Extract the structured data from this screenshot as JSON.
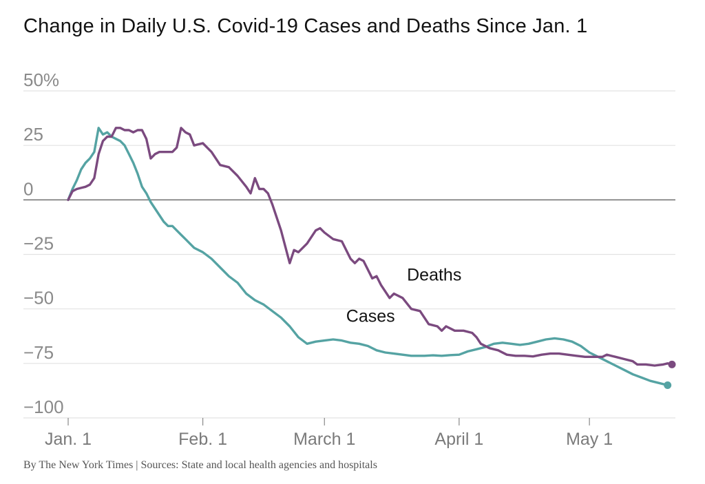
{
  "colors": {
    "deaths": "#7b4a7f",
    "cases": "#55a3a3",
    "grid": "#e2e2e2",
    "zero": "#777777",
    "axis": "#bdbdbd"
  },
  "chart_data": {
    "type": "line",
    "title": "Change in Daily U.S. Covid-19 Cases and Deaths Since Jan. 1",
    "source": "By The New York Times | Sources: State and local health agencies and hospitals",
    "xlabel": "",
    "ylabel": "",
    "x_domain": [
      "2021-01-01",
      "2021-05-20"
    ],
    "ylim": [
      -100,
      50
    ],
    "y_ticks": [
      {
        "value": 50,
        "label": "50%"
      },
      {
        "value": 25,
        "label": "25"
      },
      {
        "value": 0,
        "label": "0"
      },
      {
        "value": -25,
        "label": "−25"
      },
      {
        "value": -50,
        "label": "−50"
      },
      {
        "value": -75,
        "label": "−75"
      },
      {
        "value": -100,
        "label": "−100"
      }
    ],
    "x_ticks": [
      {
        "date": "2021-01-01",
        "label": "Jan. 1"
      },
      {
        "date": "2021-02-01",
        "label": "Feb. 1"
      },
      {
        "date": "2021-03-01",
        "label": "March 1"
      },
      {
        "date": "2021-04-01",
        "label": "April 1"
      },
      {
        "date": "2021-05-01",
        "label": "May 1"
      }
    ],
    "grid": true,
    "series": [
      {
        "name": "Cases",
        "label_date": "2021-03-06",
        "label_value": -56,
        "points": [
          [
            "2021-01-01",
            0
          ],
          [
            "2021-01-02",
            5
          ],
          [
            "2021-01-03",
            9
          ],
          [
            "2021-01-04",
            14
          ],
          [
            "2021-01-05",
            17
          ],
          [
            "2021-01-06",
            19
          ],
          [
            "2021-01-07",
            22
          ],
          [
            "2021-01-08",
            33
          ],
          [
            "2021-01-09",
            30
          ],
          [
            "2021-01-10",
            31
          ],
          [
            "2021-01-11",
            29
          ],
          [
            "2021-01-12",
            28
          ],
          [
            "2021-01-13",
            27
          ],
          [
            "2021-01-14",
            25
          ],
          [
            "2021-01-15",
            21
          ],
          [
            "2021-01-16",
            17
          ],
          [
            "2021-01-17",
            12
          ],
          [
            "2021-01-18",
            6
          ],
          [
            "2021-01-19",
            3
          ],
          [
            "2021-01-20",
            -1
          ],
          [
            "2021-01-21",
            -4
          ],
          [
            "2021-01-22",
            -7
          ],
          [
            "2021-01-23",
            -10
          ],
          [
            "2021-01-24",
            -12
          ],
          [
            "2021-01-25",
            -12
          ],
          [
            "2021-01-26",
            -14
          ],
          [
            "2021-01-27",
            -16
          ],
          [
            "2021-01-28",
            -18
          ],
          [
            "2021-01-29",
            -20
          ],
          [
            "2021-01-30",
            -22
          ],
          [
            "2021-02-01",
            -24
          ],
          [
            "2021-02-03",
            -27
          ],
          [
            "2021-02-05",
            -31
          ],
          [
            "2021-02-07",
            -35
          ],
          [
            "2021-02-09",
            -38
          ],
          [
            "2021-02-11",
            -43
          ],
          [
            "2021-02-13",
            -46
          ],
          [
            "2021-02-15",
            -48
          ],
          [
            "2021-02-17",
            -51
          ],
          [
            "2021-02-19",
            -54
          ],
          [
            "2021-02-21",
            -58
          ],
          [
            "2021-02-23",
            -63
          ],
          [
            "2021-02-25",
            -66
          ],
          [
            "2021-02-27",
            -65
          ],
          [
            "2021-03-01",
            -64.5
          ],
          [
            "2021-03-03",
            -64
          ],
          [
            "2021-03-05",
            -64.5
          ],
          [
            "2021-03-07",
            -65.5
          ],
          [
            "2021-03-09",
            -66
          ],
          [
            "2021-03-11",
            -67
          ],
          [
            "2021-03-13",
            -69
          ],
          [
            "2021-03-15",
            -70
          ],
          [
            "2021-03-17",
            -70.5
          ],
          [
            "2021-03-19",
            -71
          ],
          [
            "2021-03-21",
            -71.5
          ],
          [
            "2021-03-24",
            -71.5
          ],
          [
            "2021-03-26",
            -71.3
          ],
          [
            "2021-03-28",
            -71.5
          ],
          [
            "2021-03-30",
            -71.2
          ],
          [
            "2021-04-01",
            -71
          ],
          [
            "2021-04-03",
            -69.5
          ],
          [
            "2021-04-05",
            -68.5
          ],
          [
            "2021-04-07",
            -67.5
          ],
          [
            "2021-04-09",
            -66
          ],
          [
            "2021-04-11",
            -65.5
          ],
          [
            "2021-04-13",
            -66
          ],
          [
            "2021-04-15",
            -66.5
          ],
          [
            "2021-04-17",
            -66
          ],
          [
            "2021-04-19",
            -65
          ],
          [
            "2021-04-21",
            -64
          ],
          [
            "2021-04-23",
            -63.5
          ],
          [
            "2021-04-25",
            -64
          ],
          [
            "2021-04-27",
            -65
          ],
          [
            "2021-04-29",
            -67
          ],
          [
            "2021-05-01",
            -70
          ],
          [
            "2021-05-03",
            -72
          ],
          [
            "2021-05-05",
            -74
          ],
          [
            "2021-05-07",
            -76
          ],
          [
            "2021-05-09",
            -78
          ],
          [
            "2021-05-11",
            -80
          ],
          [
            "2021-05-13",
            -81.5
          ],
          [
            "2021-05-15",
            -83
          ],
          [
            "2021-05-17",
            -84
          ],
          [
            "2021-05-19",
            -85
          ]
        ]
      },
      {
        "name": "Deaths",
        "label_date": "2021-03-20",
        "label_value": -37,
        "points": [
          [
            "2021-01-01",
            0
          ],
          [
            "2021-01-02",
            4
          ],
          [
            "2021-01-03",
            5
          ],
          [
            "2021-01-04",
            5.5
          ],
          [
            "2021-01-05",
            6
          ],
          [
            "2021-01-06",
            7
          ],
          [
            "2021-01-07",
            10
          ],
          [
            "2021-01-08",
            21
          ],
          [
            "2021-01-09",
            27
          ],
          [
            "2021-01-10",
            29
          ],
          [
            "2021-01-11",
            29
          ],
          [
            "2021-01-12",
            33
          ],
          [
            "2021-01-13",
            33
          ],
          [
            "2021-01-14",
            32
          ],
          [
            "2021-01-15",
            32
          ],
          [
            "2021-01-16",
            31
          ],
          [
            "2021-01-17",
            32
          ],
          [
            "2021-01-18",
            32
          ],
          [
            "2021-01-19",
            28
          ],
          [
            "2021-01-20",
            19
          ],
          [
            "2021-01-21",
            21
          ],
          [
            "2021-01-22",
            22
          ],
          [
            "2021-01-23",
            22
          ],
          [
            "2021-01-24",
            22
          ],
          [
            "2021-01-25",
            22
          ],
          [
            "2021-01-26",
            24
          ],
          [
            "2021-01-27",
            33
          ],
          [
            "2021-01-28",
            31
          ],
          [
            "2021-01-29",
            30
          ],
          [
            "2021-01-30",
            25
          ],
          [
            "2021-02-01",
            26
          ],
          [
            "2021-02-03",
            22
          ],
          [
            "2021-02-05",
            16
          ],
          [
            "2021-02-07",
            15
          ],
          [
            "2021-02-09",
            11
          ],
          [
            "2021-02-11",
            6
          ],
          [
            "2021-02-12",
            3
          ],
          [
            "2021-02-13",
            10
          ],
          [
            "2021-02-14",
            5
          ],
          [
            "2021-02-15",
            5
          ],
          [
            "2021-02-16",
            3
          ],
          [
            "2021-02-17",
            -2
          ],
          [
            "2021-02-19",
            -14
          ],
          [
            "2021-02-21",
            -29
          ],
          [
            "2021-02-22",
            -23
          ],
          [
            "2021-02-23",
            -24
          ],
          [
            "2021-02-25",
            -20
          ],
          [
            "2021-02-27",
            -14
          ],
          [
            "2021-02-28",
            -13
          ],
          [
            "2021-03-01",
            -15
          ],
          [
            "2021-03-03",
            -18
          ],
          [
            "2021-03-05",
            -19
          ],
          [
            "2021-03-07",
            -27
          ],
          [
            "2021-03-08",
            -29
          ],
          [
            "2021-03-09",
            -27
          ],
          [
            "2021-03-10",
            -28
          ],
          [
            "2021-03-12",
            -36
          ],
          [
            "2021-03-13",
            -35
          ],
          [
            "2021-03-14",
            -39
          ],
          [
            "2021-03-16",
            -45
          ],
          [
            "2021-03-17",
            -43
          ],
          [
            "2021-03-19",
            -45
          ],
          [
            "2021-03-21",
            -50
          ],
          [
            "2021-03-23",
            -51
          ],
          [
            "2021-03-25",
            -57
          ],
          [
            "2021-03-27",
            -58
          ],
          [
            "2021-03-28",
            -60
          ],
          [
            "2021-03-29",
            -58
          ],
          [
            "2021-03-31",
            -60
          ],
          [
            "2021-04-02",
            -60
          ],
          [
            "2021-04-04",
            -61
          ],
          [
            "2021-04-05",
            -63
          ],
          [
            "2021-04-06",
            -66
          ],
          [
            "2021-04-08",
            -68
          ],
          [
            "2021-04-10",
            -69
          ],
          [
            "2021-04-12",
            -71
          ],
          [
            "2021-04-14",
            -71.5
          ],
          [
            "2021-04-16",
            -71.5
          ],
          [
            "2021-04-18",
            -71.8
          ],
          [
            "2021-04-20",
            -71
          ],
          [
            "2021-04-22",
            -70.5
          ],
          [
            "2021-04-24",
            -70.5
          ],
          [
            "2021-04-26",
            -71
          ],
          [
            "2021-04-28",
            -71.5
          ],
          [
            "2021-04-30",
            -72
          ],
          [
            "2021-05-02",
            -72
          ],
          [
            "2021-05-04",
            -72
          ],
          [
            "2021-05-05",
            -71
          ],
          [
            "2021-05-07",
            -72
          ],
          [
            "2021-05-09",
            -73
          ],
          [
            "2021-05-11",
            -74
          ],
          [
            "2021-05-12",
            -75.5
          ],
          [
            "2021-05-14",
            -75.5
          ],
          [
            "2021-05-16",
            -76
          ],
          [
            "2021-05-18",
            -75.5
          ],
          [
            "2021-05-19",
            -75
          ],
          [
            "2021-05-20",
            -75.5
          ]
        ]
      }
    ]
  }
}
